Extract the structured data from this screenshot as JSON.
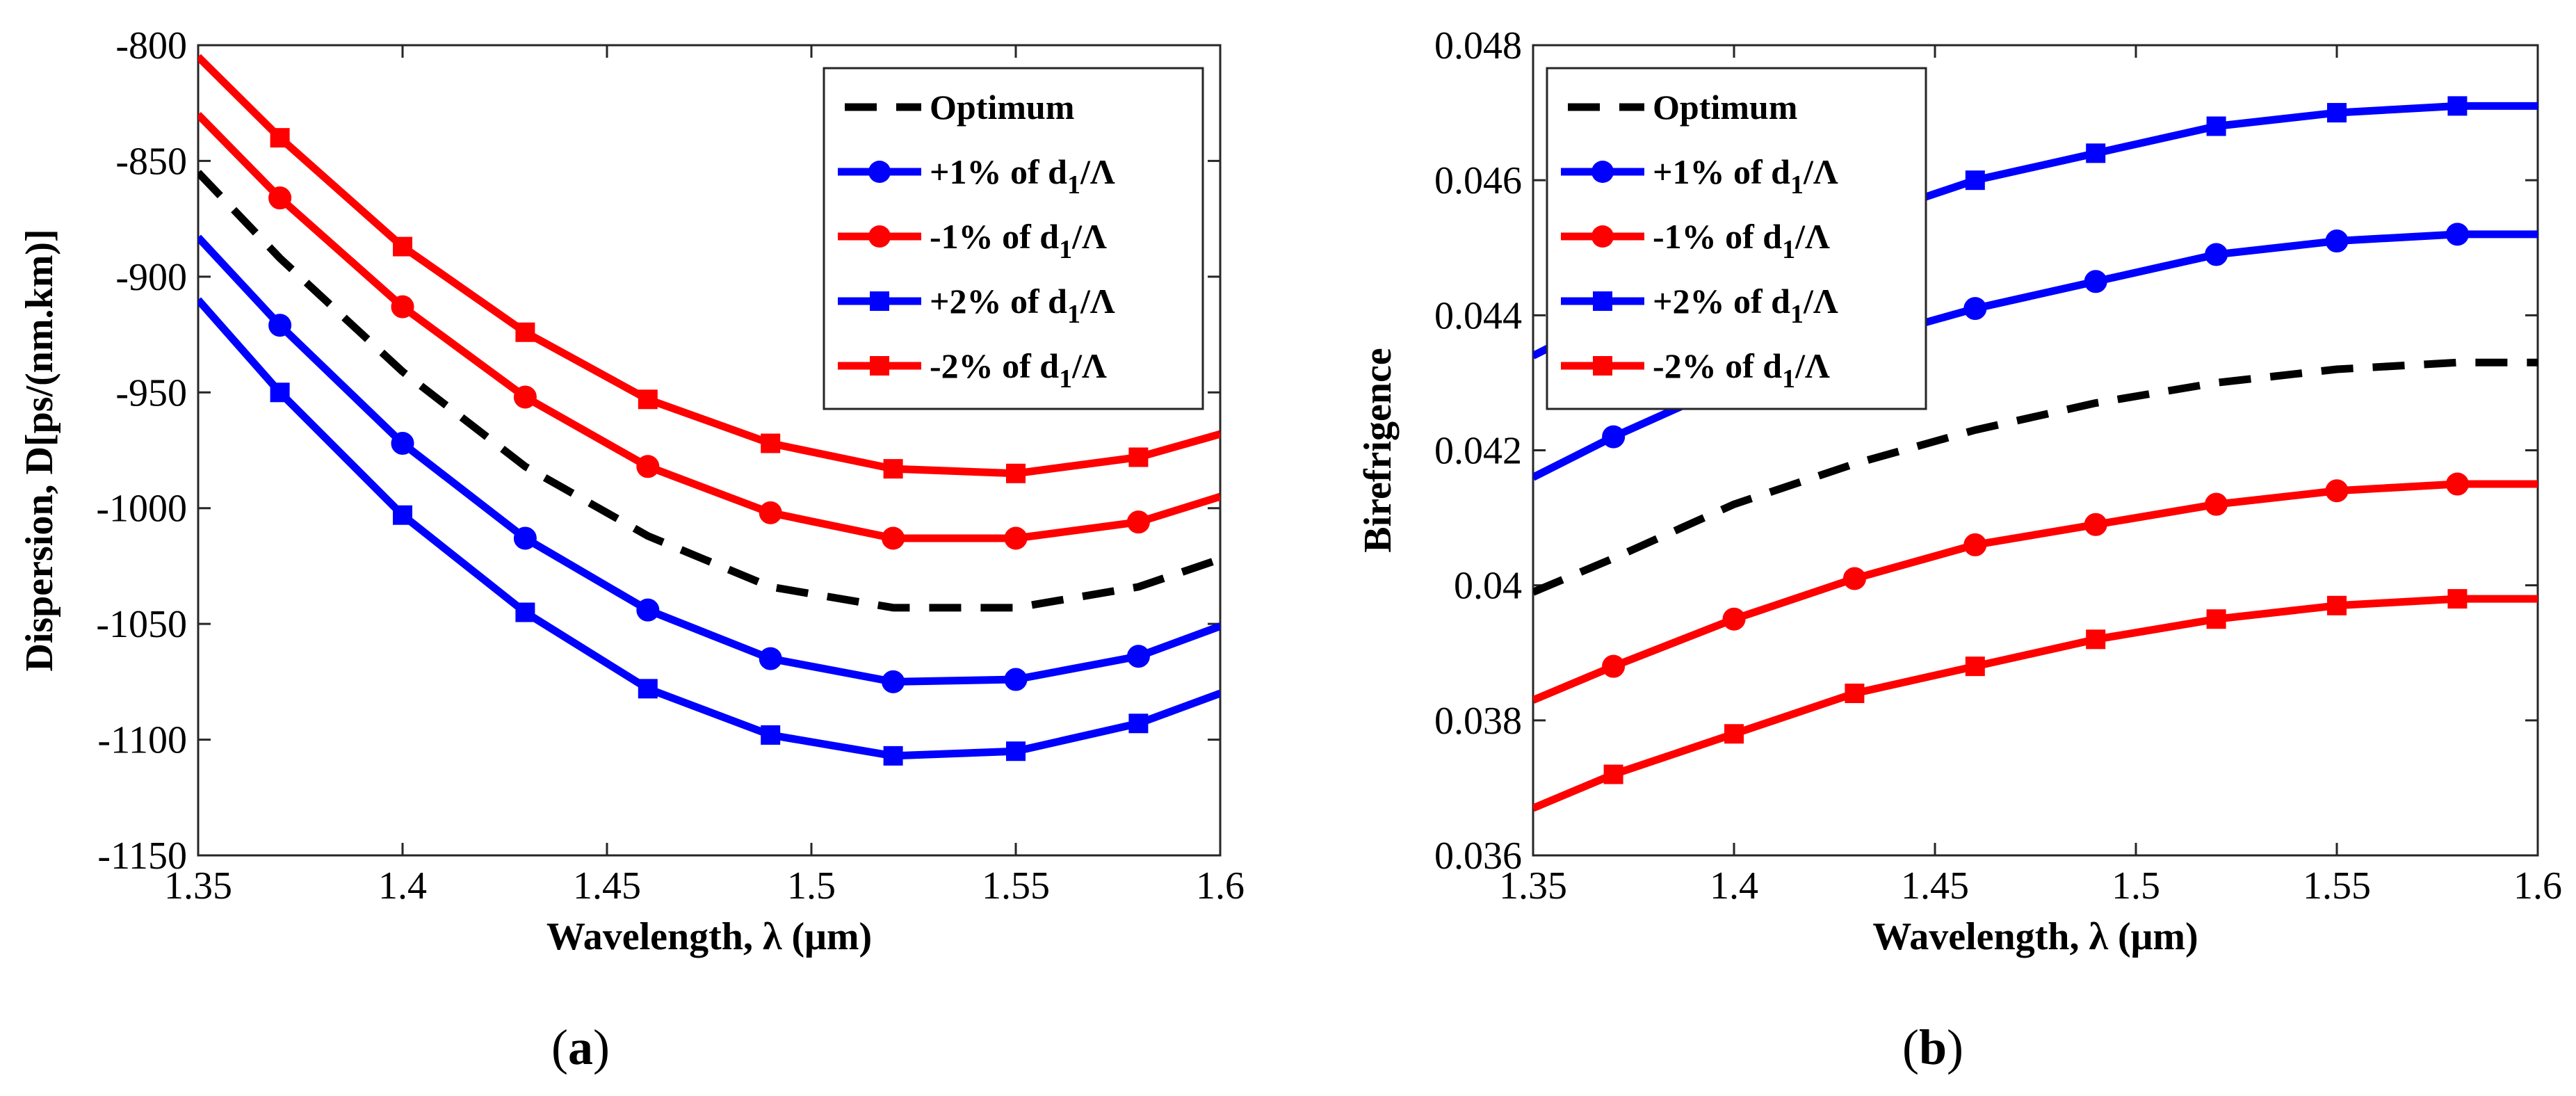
{
  "figure_labels": {
    "a": "(a)",
    "b": "(b)",
    "a_letter": "a",
    "b_letter": "b"
  },
  "chart_data": [
    {
      "type": "line",
      "panel": "(a)",
      "xlabel": "Wavelength, λ (μm)",
      "ylabel": "Dispersion, D[ps/(nm.km)]",
      "xlim": [
        1.35,
        1.6
      ],
      "ylim": [
        -1150,
        -800
      ],
      "xticks": [
        "1.35",
        "1.4",
        "1.45",
        "1.5",
        "1.55",
        "1.6"
      ],
      "xtick_values": [
        1.35,
        1.4,
        1.45,
        1.5,
        1.55,
        1.6
      ],
      "yticks": [
        "-800",
        "-850",
        "-900",
        "-950",
        "-1000",
        "-1050",
        "-1100",
        "-1150"
      ],
      "ytick_values": [
        -800,
        -850,
        -900,
        -950,
        -1000,
        -1050,
        -1100,
        -1150
      ],
      "grid": false,
      "legend_position": "top-right",
      "x": [
        1.35,
        1.37,
        1.4,
        1.43,
        1.46,
        1.49,
        1.52,
        1.55,
        1.58,
        1.6
      ],
      "series": [
        {
          "name": "Optimum",
          "color": "#000000",
          "style": "dashed",
          "marker": "none",
          "values": [
            -855,
            -892,
            -941,
            -982,
            -1012,
            -1034,
            -1043,
            -1043,
            -1034,
            -1022
          ]
        },
        {
          "name": "+1% of d1/Λ",
          "color": "#0000ff",
          "style": "solid",
          "marker": "circle",
          "values": [
            -883,
            -921,
            -972,
            -1013,
            -1044,
            -1065,
            -1075,
            -1074,
            -1064,
            -1051
          ]
        },
        {
          "name": "-1% of d1/Λ",
          "color": "#ff0000",
          "style": "solid",
          "marker": "circle",
          "values": [
            -830,
            -866,
            -913,
            -952,
            -982,
            -1002,
            -1013,
            -1013,
            -1006,
            -995
          ]
        },
        {
          "name": "+2% of d1/Λ",
          "color": "#0000ff",
          "style": "solid",
          "marker": "square",
          "values": [
            -910,
            -950,
            -1003,
            -1045,
            -1078,
            -1098,
            -1107,
            -1105,
            -1093,
            -1080
          ]
        },
        {
          "name": "-2% of d1/Λ",
          "color": "#ff0000",
          "style": "solid",
          "marker": "square",
          "values": [
            -805,
            -840,
            -887,
            -924,
            -953,
            -972,
            -983,
            -985,
            -978,
            -968
          ]
        }
      ]
    },
    {
      "type": "line",
      "panel": "(b)",
      "xlabel": "Wavelength, λ (μm)",
      "ylabel": "Birefrigence",
      "xlim": [
        1.35,
        1.6
      ],
      "ylim": [
        0.036,
        0.048
      ],
      "xticks": [
        "1.35",
        "1.4",
        "1.45",
        "1.5",
        "1.55",
        "1.6"
      ],
      "xtick_values": [
        1.35,
        1.4,
        1.45,
        1.5,
        1.55,
        1.6
      ],
      "yticks": [
        "0.048",
        "0.046",
        "0.044",
        "0.042",
        "0.04",
        "0.038",
        "0.036"
      ],
      "ytick_values": [
        0.048,
        0.046,
        0.044,
        0.042,
        0.04,
        0.038,
        0.036
      ],
      "grid": false,
      "legend_position": "top-left",
      "x": [
        1.35,
        1.37,
        1.4,
        1.43,
        1.46,
        1.49,
        1.52,
        1.55,
        1.58,
        1.6
      ],
      "series": [
        {
          "name": "Optimum",
          "color": "#000000",
          "style": "dashed",
          "marker": "none",
          "values": [
            0.0399,
            0.0404,
            0.0412,
            0.0418,
            0.0423,
            0.0427,
            0.043,
            0.0432,
            0.0433,
            0.0433
          ]
        },
        {
          "name": "+1% of d1/Λ",
          "color": "#0000ff",
          "style": "solid",
          "marker": "circle",
          "values": [
            0.0416,
            0.0422,
            0.043,
            0.0436,
            0.0441,
            0.0445,
            0.0449,
            0.0451,
            0.0452,
            0.0452
          ]
        },
        {
          "name": "-1% of d1/Λ",
          "color": "#ff0000",
          "style": "solid",
          "marker": "circle",
          "values": [
            0.0383,
            0.0388,
            0.0395,
            0.0401,
            0.0406,
            0.0409,
            0.0412,
            0.0414,
            0.0415,
            0.0415
          ]
        },
        {
          "name": "+2% of d1/Λ",
          "color": "#0000ff",
          "style": "solid",
          "marker": "square",
          "values": [
            0.0434,
            0.044,
            0.0448,
            0.0454,
            0.046,
            0.0464,
            0.0468,
            0.047,
            0.0471,
            0.0471
          ]
        },
        {
          "name": "-2% of d1/Λ",
          "color": "#ff0000",
          "style": "solid",
          "marker": "square",
          "values": [
            0.0367,
            0.0372,
            0.0378,
            0.0384,
            0.0388,
            0.0392,
            0.0395,
            0.0397,
            0.0398,
            0.0398
          ]
        }
      ]
    }
  ]
}
